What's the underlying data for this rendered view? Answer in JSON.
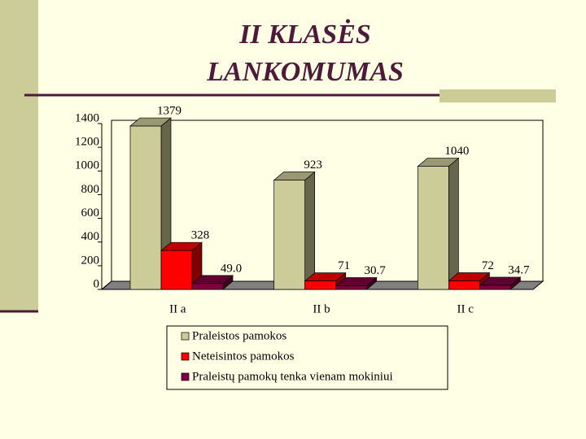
{
  "chart_data": {
    "type": "bar3d",
    "title": "II KLASĖS LANKOMUMAS",
    "categories": [
      "II a",
      "II b",
      "II c"
    ],
    "series": [
      {
        "name": "Praleistos pamokos",
        "color": "#cccc99",
        "values": [
          1379,
          923,
          1040
        ]
      },
      {
        "name": "Neteisintos pamokos",
        "color": "#ff0000",
        "values": [
          328,
          71,
          72
        ]
      },
      {
        "name": "Praleistų pamokų tenka vienam mokiniui",
        "color": "#800040",
        "values": [
          49.0,
          30.7,
          34.7
        ],
        "value_labels": [
          "49.0",
          "30.7",
          "34.7"
        ]
      }
    ],
    "ylim": [
      0,
      1400
    ],
    "yticks": [
      0,
      200,
      400,
      600,
      800,
      1000,
      1200,
      1400
    ]
  }
}
